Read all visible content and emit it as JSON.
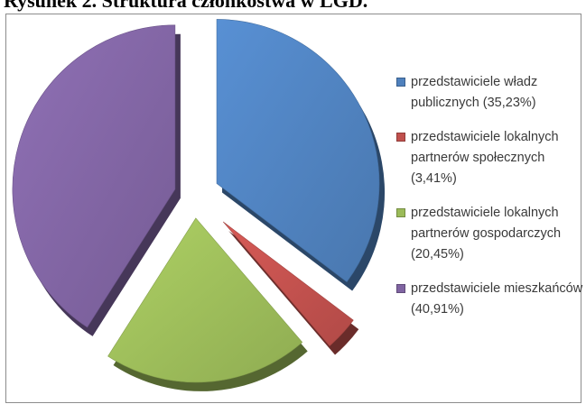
{
  "title": "Rysunek 2. Struktura członkostwa w LGD.",
  "chart_data": {
    "type": "pie",
    "title": "Rysunek 2. Struktura członkostwa w LGD.",
    "slices": [
      {
        "label": "przedstawiciele władz publicznych (35,23%)",
        "value": 35.23,
        "color": "#4f81bd"
      },
      {
        "label": "przedstawiciele lokalnych partnerów społecznych (3,41%)",
        "value": 3.41,
        "color": "#c0504d"
      },
      {
        "label": "przedstawiciele lokalnych partnerów gospodarczych (20,45%)",
        "value": 20.45,
        "color": "#9bbb59"
      },
      {
        "label": "przedstawiciele mieszkańców (40,91%)",
        "value": 40.91,
        "color": "#8064a2"
      }
    ],
    "legend_position": "right",
    "style": "3d exploded pie"
  }
}
